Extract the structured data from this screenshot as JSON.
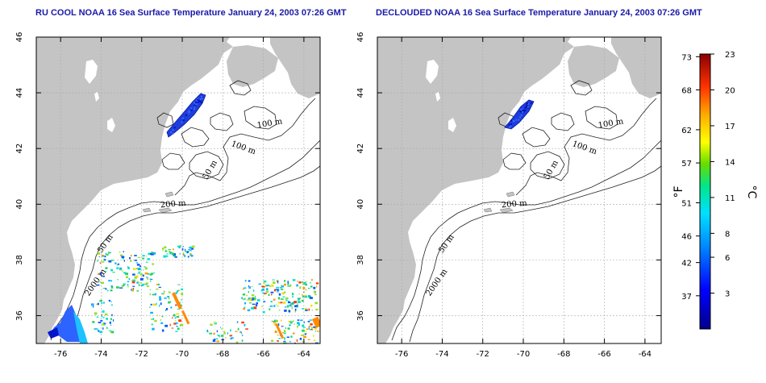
{
  "maps": [
    {
      "id": "left",
      "title": "RU COOL NOAA 16 Sea Surface Temperature January 24, 2003 07:26 GMT",
      "cloudy": true
    },
    {
      "id": "right",
      "title": "DECLOUDED NOAA 16 Sea Surface Temperature January 24, 2003 07:26 GMT",
      "cloudy": false
    }
  ],
  "axes": {
    "x_ticks": [
      "-76",
      "-74",
      "-72",
      "-70",
      "-68",
      "-66",
      "-64"
    ],
    "x_range": [
      -77.2,
      -63.2
    ],
    "y_ticks": [
      "36",
      "38",
      "40",
      "42",
      "44",
      "46"
    ],
    "y_range": [
      35,
      46
    ],
    "grid": true
  },
  "contour_labels": {
    "m100a": "100 m",
    "m100b": "100 m",
    "m50a": "50 m",
    "m200": "200 m",
    "m50b": "50 m",
    "m2000": "2000 m"
  },
  "colorbar": {
    "fahrenheit_label": "°F",
    "celsius_label": "°C",
    "fahrenheit_ticks": [
      "73",
      "68",
      "62",
      "57",
      "51",
      "46",
      "42",
      "37"
    ],
    "celsius_ticks": [
      "23",
      "20",
      "17",
      "14",
      "11",
      "8",
      "6",
      "3"
    ],
    "celsius_range": [
      0,
      23
    ]
  },
  "colors": {
    "land": "#c4c4c4",
    "title": "#1a1aa8",
    "grid": "#aaaaaa"
  }
}
